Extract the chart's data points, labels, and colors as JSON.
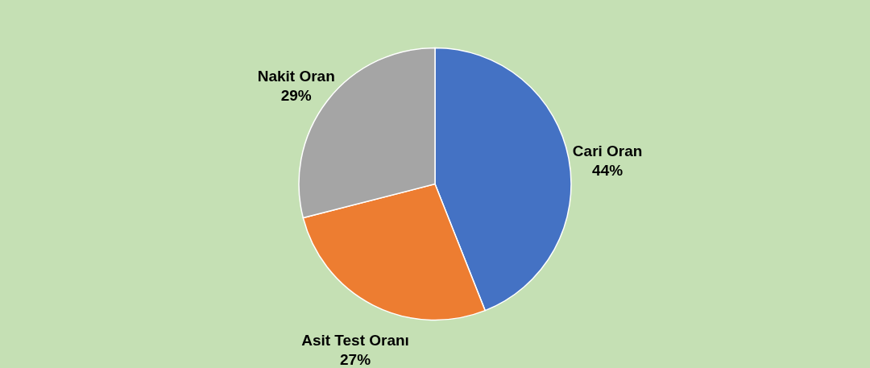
{
  "chart_data": {
    "type": "pie",
    "categories": [
      "Cari Oran",
      "Asit Test Oranı",
      "Nakit Oran"
    ],
    "values": [
      44,
      27,
      29
    ],
    "colors": [
      "#4472c4",
      "#ed7d31",
      "#a5a5a5"
    ],
    "value_labels": [
      "44%",
      "27%",
      "29%"
    ]
  }
}
